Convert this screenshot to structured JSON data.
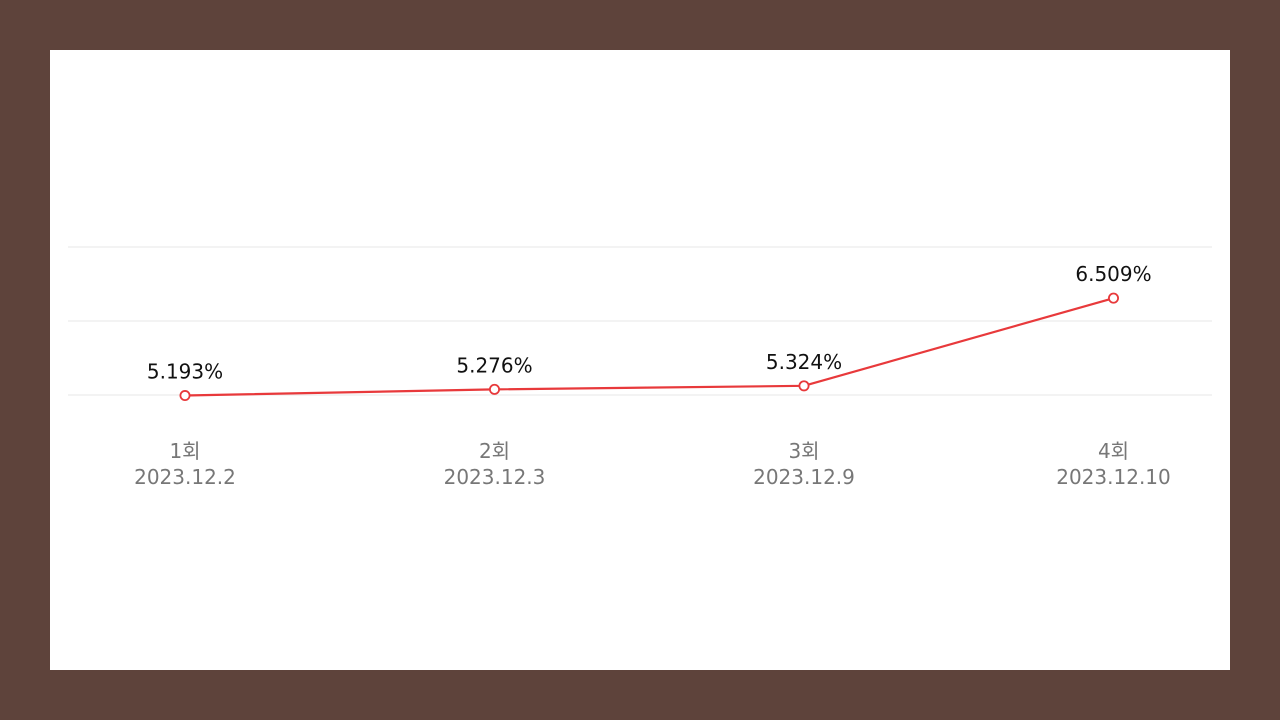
{
  "colors": {
    "page_background": "#5e433b",
    "panel_background": "#ffffff",
    "line": "#e8393b",
    "grid": "#ececec",
    "value_text": "#111111",
    "tick_text": "#777777"
  },
  "chart_data": {
    "type": "line",
    "categories": [
      {
        "round": "1회",
        "date": "2023.12.2"
      },
      {
        "round": "2회",
        "date": "2023.12.3"
      },
      {
        "round": "3회",
        "date": "2023.12.9"
      },
      {
        "round": "4회",
        "date": "2023.12.10"
      }
    ],
    "series": [
      {
        "values": [
          5.193,
          5.276,
          5.324,
          6.509
        ],
        "labels": [
          "5.193%",
          "5.276%",
          "5.324%",
          "6.509%"
        ]
      }
    ],
    "title": "",
    "xlabel": "",
    "ylabel": "",
    "ylim": [
      5.2,
      7.2
    ],
    "y_gridlines": [
      5.2,
      6.2,
      7.2
    ],
    "y_tick_labels_shown": false,
    "grid": true,
    "legend": "none"
  }
}
